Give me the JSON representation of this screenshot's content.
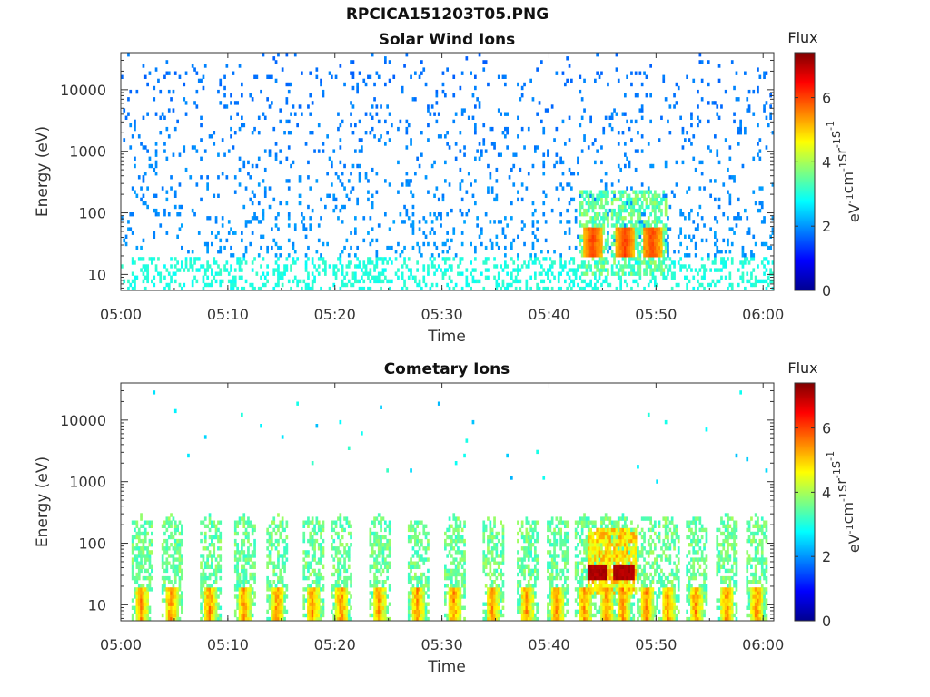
{
  "figure": {
    "title": "RPCICA151203T05.PNG"
  },
  "chart_data": [
    {
      "type": "heatmap",
      "title": "Solar Wind Ions",
      "xlabel": "Time",
      "ylabel": "Energy (eV)",
      "yscale": "log",
      "xlim": [
        "05:00",
        "06:01"
      ],
      "ylim": [
        5.5,
        40000
      ],
      "xticks": [
        "05:00",
        "05:10",
        "05:20",
        "05:30",
        "05:40",
        "05:50",
        "06:00"
      ],
      "yticks": [
        "10",
        "100",
        "1000",
        "10000"
      ],
      "colorbar": {
        "title": "Flux",
        "label": "eV-1cm-2sr-1s-1",
        "label_parts": {
          "base": [
            "eV",
            "cm",
            "sr",
            "s"
          ],
          "exp": "-1"
        },
        "range": [
          0,
          7.4
        ],
        "ticks": [
          "0",
          "2",
          "4",
          "6"
        ],
        "colormap": "jet"
      },
      "description_values": {
        "background_flux_low_energy": 2.8,
        "background_flux_high_energy": 1.3,
        "burst_times_min": [
          44.0,
          47.0,
          49.5
        ],
        "burst_peak_flux": 5.8,
        "burst_energy_range_eV": [
          18,
          60
        ]
      }
    },
    {
      "type": "heatmap",
      "title": "Cometary Ions",
      "xlabel": "Time",
      "ylabel": "Energy (eV)",
      "yscale": "log",
      "xlim": [
        "05:00",
        "06:01"
      ],
      "ylim": [
        5.5,
        40000
      ],
      "xticks": [
        "05:00",
        "05:10",
        "05:20",
        "05:30",
        "05:40",
        "05:50",
        "06:00"
      ],
      "yticks": [
        "10",
        "100",
        "1000",
        "10000"
      ],
      "colorbar": {
        "title": "Flux",
        "label": "eV-1cm-2sr-1s-1",
        "label_parts": {
          "base": [
            "eV",
            "cm",
            "sr",
            "s"
          ],
          "exp": "-1"
        },
        "range": [
          0,
          7.4
        ],
        "ticks": [
          "0",
          "2",
          "4",
          "6"
        ],
        "colormap": "jet"
      },
      "description_values": {
        "ion_bursts_time_min": [
          1.8,
          4.6,
          8.2,
          11.4,
          14.5,
          17.8,
          20.5,
          24.0,
          27.6,
          31.0,
          34.6,
          37.8,
          40.6,
          43.2,
          45.3,
          46.8,
          49.0,
          51.0,
          53.6,
          56.5,
          59.3
        ],
        "burst_peak_energy_eV": 12,
        "peak_flux": 7.2,
        "peak_flux_region_time_min": [
          43.5,
          48.0
        ],
        "peak_flux_region_energy_eV": [
          25,
          45
        ]
      }
    }
  ]
}
